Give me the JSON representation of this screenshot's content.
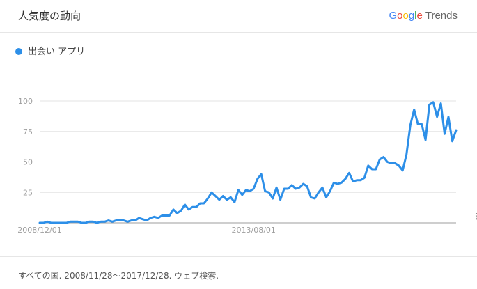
{
  "header": {
    "title": "人気度の動向",
    "brand_google": [
      "G",
      "o",
      "o",
      "g",
      "l",
      "e"
    ],
    "brand_trends": "Trends"
  },
  "footer": {
    "text": "すべての国. 2008/11/28～2017/12/28. ウェブ検索."
  },
  "colors": {
    "series": "#2d8fe8",
    "grid": "#e3e3e3",
    "axis": "#9e9e9e",
    "tick_text": "#9e9e9e"
  },
  "chart_data": {
    "type": "line",
    "xlabel": "",
    "ylabel": "",
    "x_ticks": [
      "2008/12/01",
      "2013/08/01"
    ],
    "y_ticks": [
      25,
      50,
      75,
      100
    ],
    "ylim": [
      0,
      100
    ],
    "grid": true,
    "legend_position": "top-left",
    "annotation": {
      "text": "注",
      "x_index": 115
    },
    "tick_x_index": [
      0,
      56
    ],
    "series": [
      {
        "name": "出会い アプリ",
        "values": [
          0,
          0,
          1,
          0,
          0,
          0,
          0,
          0,
          1,
          1,
          1,
          0,
          0,
          1,
          1,
          0,
          1,
          1,
          2,
          1,
          2,
          2,
          2,
          1,
          2,
          2,
          4,
          3,
          2,
          4,
          5,
          4,
          6,
          6,
          6,
          11,
          8,
          10,
          15,
          11,
          13,
          13,
          16,
          16,
          20,
          25,
          22,
          19,
          22,
          19,
          21,
          17,
          27,
          23,
          27,
          26,
          28,
          36,
          40,
          26,
          25,
          20,
          29,
          19,
          28,
          28,
          31,
          28,
          29,
          32,
          30,
          21,
          20,
          25,
          29,
          21,
          26,
          33,
          32,
          33,
          36,
          41,
          34,
          35,
          35,
          37,
          47,
          44,
          44,
          52,
          54,
          50,
          49,
          49,
          47,
          43,
          56,
          80,
          93,
          81,
          81,
          68,
          97,
          99,
          87,
          98,
          73,
          87,
          67,
          76
        ]
      }
    ]
  }
}
